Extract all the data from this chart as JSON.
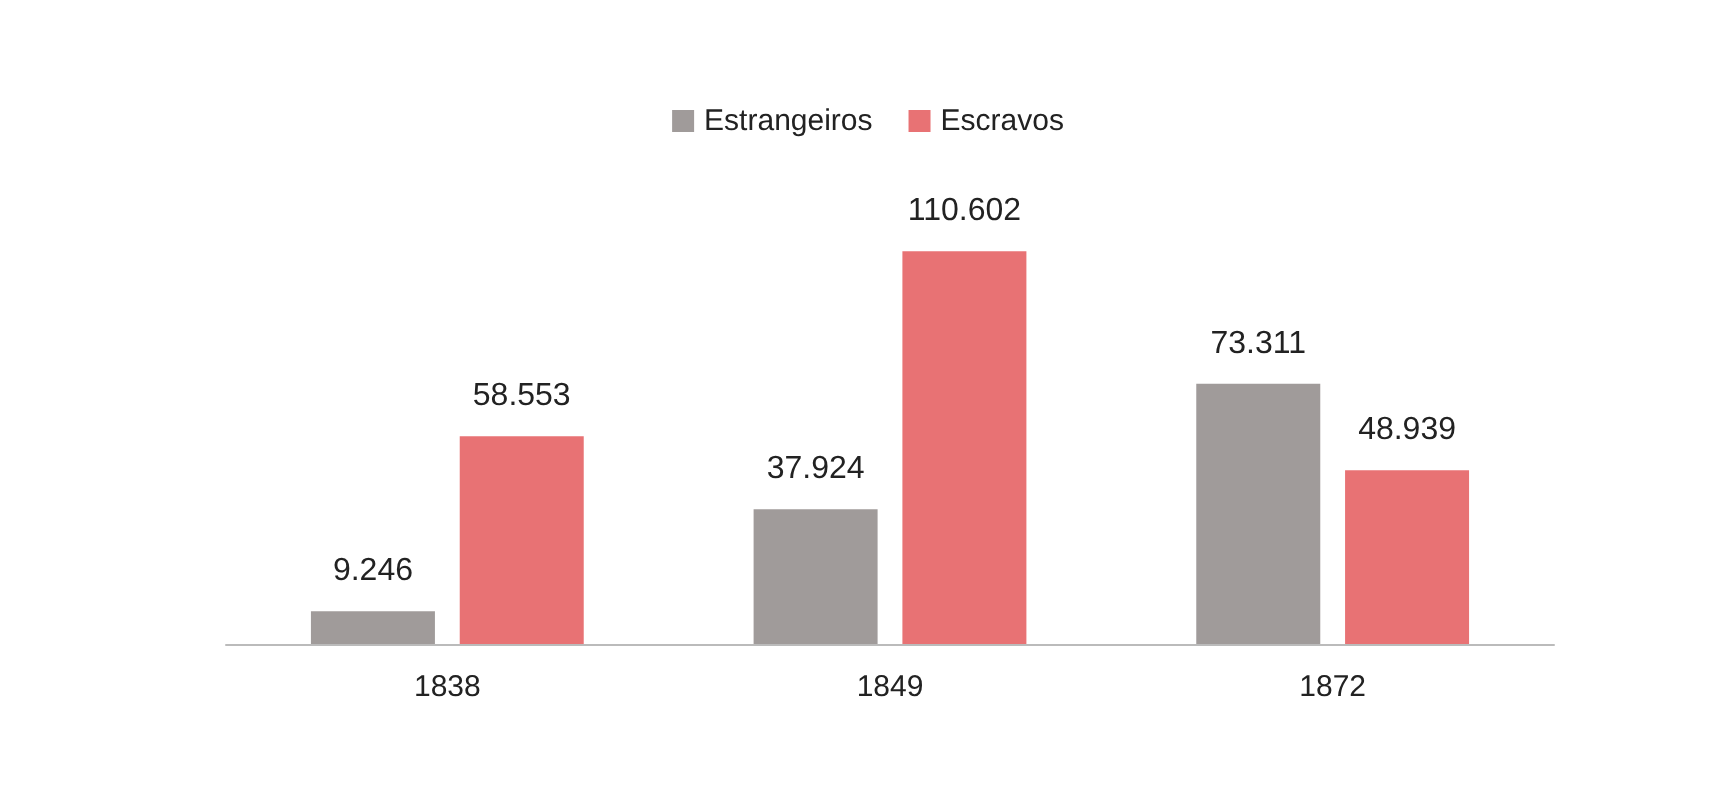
{
  "chart_data": {
    "type": "bar",
    "categories": [
      "1838",
      "1849",
      "1872"
    ],
    "series": [
      {
        "name": "Estrangeiros",
        "color": "#a09b9a",
        "values": [
          9246,
          37924,
          73311
        ],
        "value_labels": [
          "9.246",
          "37.924",
          "73.311"
        ]
      },
      {
        "name": "Escravos",
        "color": "#e87274",
        "values": [
          58553,
          110602,
          48939
        ],
        "value_labels": [
          "58.553",
          "110.602",
          "48.939"
        ]
      }
    ],
    "legend": "top",
    "tick_labels": "x"
  }
}
